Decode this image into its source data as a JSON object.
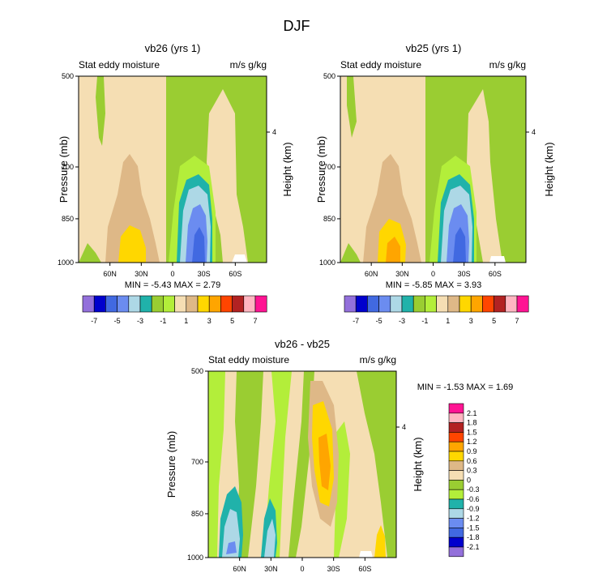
{
  "main_title": "DJF",
  "palette": {
    "1": [
      "#9370db",
      "#0000cd",
      "#4169e1",
      "#6b8cf0",
      "#add8e6",
      "#20b2aa",
      "#9acd32",
      "#b3ee3a",
      "#f5deb3",
      "#deb887",
      "#ffd700",
      "#ffa500",
      "#ff4500",
      "#b22222",
      "#ffb6c1",
      "#ff1493"
    ],
    "diff": [
      "#9370db",
      "#0000cd",
      "#4169e1",
      "#6b8cf0",
      "#add8e6",
      "#20b2aa",
      "#b3ee3a",
      "#9acd32",
      "#f5deb3",
      "#deb887",
      "#ffd700",
      "#ffa500",
      "#ff4500",
      "#b22222",
      "#ffb6c1",
      "#ff1493"
    ]
  },
  "chart_data": [
    {
      "type": "contour",
      "title": "vb26 (yrs 1)",
      "left_label": "Stat eddy moisture",
      "right_label": "m/s g/kg",
      "ylabel": "Pressure (mb)",
      "y2label": "Height (km)",
      "y_ticks": [
        "500",
        "700",
        "850",
        "1000"
      ],
      "y2_ticks": [
        "4"
      ],
      "x_ticks": [
        "60N",
        "30N",
        "0",
        "30S",
        "60S"
      ],
      "stats": "MIN =  -5.43   MAX =   2.79",
      "colorbar_labels": [
        "-7",
        "-5",
        "-3",
        "-1",
        "1",
        "3",
        "5",
        "7"
      ],
      "min": -5.43,
      "max": 2.79
    },
    {
      "type": "contour",
      "title": "vb25 (yrs 1)",
      "left_label": "Stat eddy moisture",
      "right_label": "m/s g/kg",
      "ylabel": "Pressure (mb)",
      "y2label": "Height (km)",
      "y_ticks": [
        "500",
        "700",
        "850",
        "1000"
      ],
      "y2_ticks": [
        "4"
      ],
      "x_ticks": [
        "60N",
        "30N",
        "0",
        "30S",
        "60S"
      ],
      "stats": "MIN =  -5.85   MAX =   3.93",
      "colorbar_labels": [
        "-7",
        "-5",
        "-3",
        "-1",
        "1",
        "3",
        "5",
        "7"
      ],
      "min": -5.85,
      "max": 3.93
    },
    {
      "type": "contour",
      "title": "vb26 - vb25",
      "left_label": "Stat eddy moisture",
      "right_label": "m/s g/kg",
      "ylabel": "Pressure (mb)",
      "y2label": "Height (km)",
      "y_ticks": [
        "500",
        "700",
        "850",
        "1000"
      ],
      "y2_ticks": [
        "4"
      ],
      "x_ticks": [
        "60N",
        "30N",
        "0",
        "30S",
        "60S"
      ],
      "stats": "MIN =  -1.53   MAX =   1.69",
      "colorbar_labels": [
        "2.1",
        "1.8",
        "1.5",
        "1.2",
        "0.9",
        "0.6",
        "0.3",
        "0",
        "-0.3",
        "-0.6",
        "-0.9",
        "-1.2",
        "-1.5",
        "-1.8",
        "-2.1"
      ],
      "min": -1.53,
      "max": 1.69
    }
  ]
}
